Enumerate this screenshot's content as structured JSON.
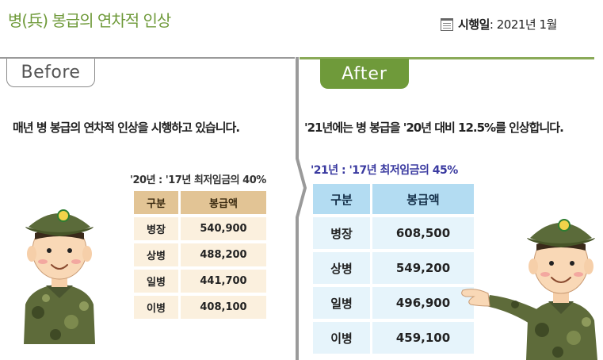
{
  "header": {
    "title": "병(兵) 봉급의 연차적 인상",
    "date_icon": "calendar-icon",
    "date_label": "시행일",
    "date_value": " : 2021년 1월"
  },
  "before": {
    "tab_label": "Before",
    "description": "매년 병 봉급의 연차적 인상을 시행하고 있습니다.",
    "note": "'20년 : '17년 최저임금의 40%",
    "table": {
      "headers": [
        "구분",
        "봉급액"
      ],
      "rows": [
        [
          "병장",
          "540,900"
        ],
        [
          "상병",
          "488,200"
        ],
        [
          "일병",
          "441,700"
        ],
        [
          "이병",
          "408,100"
        ]
      ]
    }
  },
  "after": {
    "tab_label": "After",
    "description": "'21년에는 병 봉급을 '20년 대비 12.5%를 인상합니다.",
    "note": "'21년 : '17년 최저임금의 45%",
    "table": {
      "headers": [
        "구분",
        "봉급액"
      ],
      "rows": [
        [
          "병장",
          "608,500"
        ],
        [
          "상병",
          "549,200"
        ],
        [
          "일병",
          "496,900"
        ],
        [
          "이병",
          "459,100"
        ]
      ]
    }
  },
  "colors": {
    "accent_green": "#6f9a3a",
    "before_header": "#e2c495",
    "before_cell": "#fbf0de",
    "after_header": "#b3dcf2",
    "after_cell": "#e6f4fb",
    "after_note": "#3a3aa0"
  }
}
